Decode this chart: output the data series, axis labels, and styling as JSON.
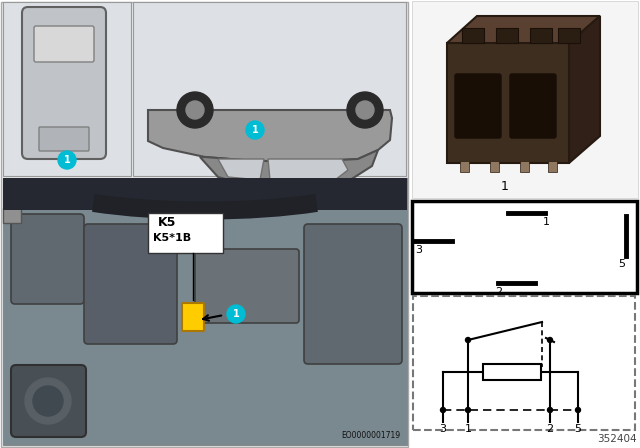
{
  "bg_color": "#ffffff",
  "left_panel_color": "#e8eaec",
  "engine_bg": "#7a8890",
  "cyan": "#00bcd4",
  "yellow": "#ffcc00",
  "dark_brown": "#3e2e20",
  "med_brown": "#5a4030",
  "part_number": "352404",
  "ref_number": "EO0000001719",
  "label_k5": "K5",
  "label_k5_1b": "K5*1B",
  "item_number": "1",
  "pin_ids_schematic": [
    "3",
    "1",
    "2",
    "5"
  ]
}
